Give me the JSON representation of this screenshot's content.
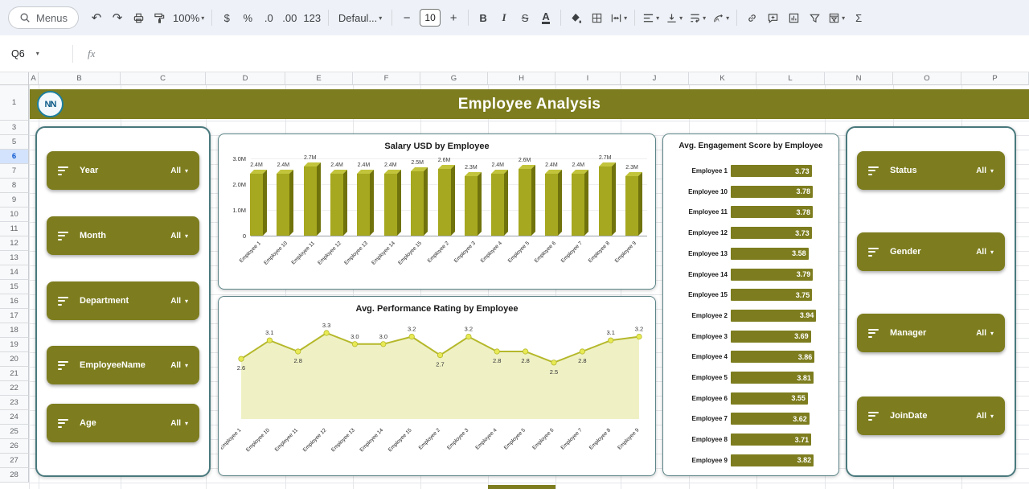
{
  "toolbar": {
    "menus_label": "Menus",
    "zoom_value": "100%",
    "currency_label": "$",
    "percent_label": "%",
    "decrease_decimal_label": ".0",
    "increase_decimal_label": ".00",
    "more_formats_label": "123",
    "font_value": "Defaul...",
    "font_size_value": "10",
    "bold_label": "B",
    "italic_label": "I",
    "strikethrough_label": "S",
    "text_color_label": "A",
    "functions_label": "Σ"
  },
  "icons": {
    "undo": "↶",
    "redo": "↷",
    "caret": "▾",
    "minus": "−",
    "plus": "+"
  },
  "formula_bar": {
    "cell_ref": "Q6",
    "fx_label": "fx"
  },
  "grid": {
    "columns": [
      "A",
      "B",
      "C",
      "D",
      "E",
      "F",
      "G",
      "H",
      "I",
      "J",
      "K",
      "L",
      "N",
      "O",
      "P"
    ],
    "rows": [
      "1",
      "3",
      "5",
      "6",
      "7",
      "8",
      "9",
      "10",
      "11",
      "12",
      "13",
      "14",
      "15",
      "16",
      "17",
      "18",
      "19",
      "20",
      "21",
      "22",
      "23",
      "24",
      "25",
      "26",
      "27",
      "28"
    ],
    "selected_row": "6"
  },
  "dashboard": {
    "title": "Employee Analysis",
    "logo_text": "NN",
    "left_slicers": [
      {
        "label": "Year",
        "value": "All"
      },
      {
        "label": "Month",
        "value": "All"
      },
      {
        "label": "Department",
        "value": "All"
      },
      {
        "label": "EmployeeName",
        "value": "All"
      },
      {
        "label": "Age",
        "value": "All"
      }
    ],
    "right_slicers": [
      {
        "label": "Status",
        "value": "All"
      },
      {
        "label": "Gender",
        "value": "All"
      },
      {
        "label": "Manager",
        "value": "All"
      },
      {
        "label": "JoinDate",
        "value": "All"
      }
    ]
  },
  "chart_data": [
    {
      "type": "bar",
      "title": "Salary USD by Employee",
      "categories": [
        "Employee 1",
        "Employee 10",
        "Employee 11",
        "Employee 12",
        "Employee 13",
        "Employee 14",
        "Employee 15",
        "Employee 2",
        "Employee 3",
        "Employee 4",
        "Employee 5",
        "Employee 6",
        "Employee 7",
        "Employee 8",
        "Employee 9"
      ],
      "values": [
        2.4,
        2.4,
        2.7,
        2.4,
        2.4,
        2.4,
        2.5,
        2.6,
        2.3,
        2.4,
        2.6,
        2.4,
        2.4,
        2.7,
        2.3
      ],
      "labels": [
        "2.4M",
        "2.4M",
        "2.7M",
        "2.4M",
        "2.4M",
        "2.4M",
        "2.5M",
        "2.6M",
        "2.3M",
        "2.4M",
        "2.6M",
        "2.4M",
        "2.4M",
        "2.7M",
        "2.3M"
      ],
      "unit": "M",
      "ylim": [
        0,
        3.0
      ],
      "yticks": [
        "3.0M",
        "2.0M",
        "1.0M",
        "0"
      ],
      "bar_color": "#a6a81f",
      "legend": "none",
      "grid": "off"
    },
    {
      "type": "line",
      "title": "Avg.  Performance Rating by Employee",
      "categories": [
        "Employee 1",
        "Employee 10",
        "Employee 11",
        "Employee 12",
        "Employee 13",
        "Employee 14",
        "Employee 15",
        "Employee 2",
        "Employee 3",
        "Employee 4",
        "Employee 5",
        "Employee 6",
        "Employee 7",
        "Employee 8",
        "Employee 9"
      ],
      "values": [
        2.6,
        3.1,
        2.8,
        3.3,
        3.0,
        3.0,
        3.2,
        2.7,
        3.2,
        2.8,
        2.8,
        2.5,
        2.8,
        3.1,
        3.2
      ],
      "line_color": "#b5b82a",
      "marker_color": "#e8ea55",
      "fill_color": "#eff1c5",
      "area": true,
      "legend": "none",
      "grid": "off"
    },
    {
      "type": "bar",
      "orientation": "horizontal",
      "title": "Avg.  Engagement Score by Employee",
      "categories": [
        "Employee 1",
        "Employee 10",
        "Employee 11",
        "Employee 12",
        "Employee 13",
        "Employee 14",
        "Employee 15",
        "Employee 2",
        "Employee 3",
        "Employee 4",
        "Employee 5",
        "Employee 6",
        "Employee 7",
        "Employee 8",
        "Employee 9"
      ],
      "values": [
        3.73,
        3.78,
        3.78,
        3.73,
        3.58,
        3.79,
        3.75,
        3.94,
        3.69,
        3.86,
        3.81,
        3.55,
        3.62,
        3.71,
        3.82
      ],
      "bar_color": "#7d7d1f",
      "legend": "none",
      "grid": "off"
    }
  ],
  "colors": {
    "olive": "#7d7d1f",
    "banner": "#7d7d1f",
    "panel_border": "#49797d",
    "selected_row_bg": "#d3e3fd",
    "toolbar_bg": "#eef2f8"
  }
}
